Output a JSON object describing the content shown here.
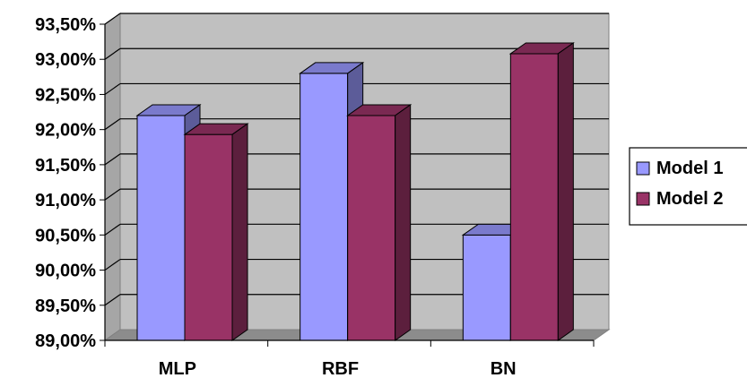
{
  "chart_data": {
    "type": "bar",
    "categories": [
      "MLP",
      "RBF",
      "BN"
    ],
    "series": [
      {
        "name": "Model 1",
        "values": [
          92.2,
          92.8,
          90.5
        ],
        "color": "#9999ff",
        "side_color": "#5c5c99",
        "top_color": "#7a7acc"
      },
      {
        "name": "Model 2",
        "values": [
          91.93,
          92.2,
          93.08
        ],
        "color": "#993366",
        "side_color": "#5c1f3d",
        "top_color": "#7a2952"
      }
    ],
    "ylim": [
      89.0,
      93.5
    ],
    "yticks": [
      {
        "value": 89.0,
        "label": "89,00%"
      },
      {
        "value": 89.5,
        "label": "89,50%"
      },
      {
        "value": 90.0,
        "label": "90,00%"
      },
      {
        "value": 90.5,
        "label": "90,50%"
      },
      {
        "value": 91.0,
        "label": "91,00%"
      },
      {
        "value": 91.5,
        "label": "91,50%"
      },
      {
        "value": 92.0,
        "label": "92,00%"
      },
      {
        "value": 92.5,
        "label": "92,50%"
      },
      {
        "value": 93.0,
        "label": "93,00%"
      },
      {
        "value": 93.5,
        "label": "93,50%"
      }
    ],
    "title": "",
    "xlabel": "",
    "ylabel": "",
    "grid": true,
    "legend_position": "right",
    "style": "3d-clustered-column",
    "plot_background": "#c0c0c0"
  }
}
